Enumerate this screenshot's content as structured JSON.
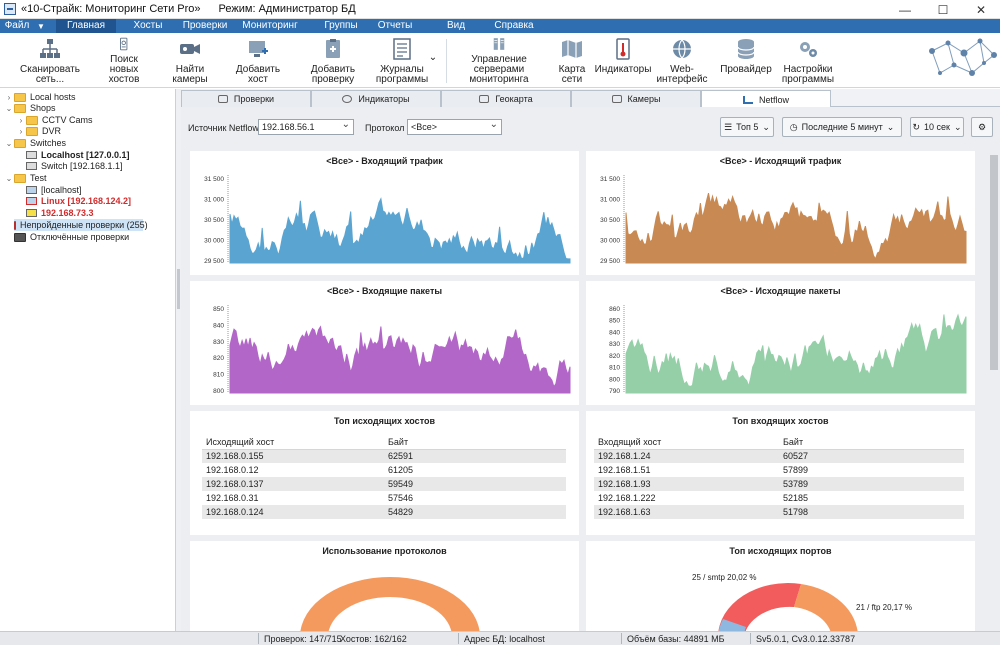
{
  "window": {
    "title": "«10-Страйк: Мониторинг Сети Pro»",
    "mode": "Режим: Администратор БД",
    "controls": {
      "minimize": "—",
      "maximize": "☐",
      "close": "✕"
    }
  },
  "menu": [
    "Файл",
    "Главная",
    "Хосты",
    "Проверки",
    "Мониторинг",
    "Группы",
    "Отчеты",
    "Вид",
    "Справка"
  ],
  "ribbon": {
    "scan": "Сканировать сеть...",
    "find_hosts": "Поиск новых хостов",
    "find_cameras": "Найти камеры",
    "add_host": "Добавить хост",
    "add_check": "Добавить проверку",
    "journals": "Журналы программы",
    "servers": "Управление серверами мониторинга",
    "map": "Карта сети",
    "indicators": "Индикаторы",
    "web": "Web-интерфейс",
    "provider": "Провайдер",
    "settings": "Настройки программы"
  },
  "tree": {
    "local_hosts": "Local hosts",
    "shops": "Shops",
    "cctv": "CCTV Cams",
    "dvr": "DVR",
    "switches": "Switches",
    "localhost": "Localhost [127.0.0.1]",
    "switch": "Switch [192.168.1.1]",
    "test": "Test",
    "t_localhost": "[localhost]",
    "linux": "Linux [192.168.124.2]",
    "ip73": "192.168.73.3",
    "failed": "Непройденные проверки (255)",
    "disabled": "Отключённые проверки"
  },
  "tabs": [
    "Проверки",
    "Индикаторы",
    "Геокарта",
    "Камеры",
    "Netflow"
  ],
  "filters": {
    "source_label": "Источник Netflow",
    "source_value": "192.168.56.1",
    "protocol_label": "Протокол",
    "protocol_value": "<Все>",
    "top": "Топ 5",
    "period": "Последние 5 минут",
    "refresh": "10 сек"
  },
  "charts": {
    "in_traffic": {
      "title": "<Все> - Входящий трафик",
      "ticks": [
        "31 500",
        "31 000",
        "30 500",
        "30 000",
        "29 500"
      ],
      "color": "#5aa4d1"
    },
    "out_traffic": {
      "title": "<Все> - Исходящий трафик",
      "ticks": [
        "31 500",
        "31 000",
        "30 500",
        "30 000",
        "29 500"
      ],
      "color": "#c88952"
    },
    "in_packets": {
      "title": "<Все> - Входящие пакеты",
      "ticks": [
        "850",
        "840",
        "830",
        "820",
        "810",
        "800"
      ],
      "color": "#b266c8"
    },
    "out_packets": {
      "title": "<Все> - Исходящие пакеты",
      "ticks": [
        "860",
        "850",
        "840",
        "830",
        "820",
        "810",
        "800",
        "790"
      ],
      "color": "#94cfa8"
    }
  },
  "top_out": {
    "title": "Топ исходящих хостов",
    "h1": "Исходящий хост",
    "h2": "Байт",
    "rows": [
      [
        "192.168.0.155",
        "62591"
      ],
      [
        "192.168.0.12",
        "61205"
      ],
      [
        "192.168.0.137",
        "59549"
      ],
      [
        "192.168.0.31",
        "57546"
      ],
      [
        "192.168.0.124",
        "54829"
      ]
    ]
  },
  "top_in": {
    "title": "Топ входящих хостов",
    "h1": "Входящий хост",
    "h2": "Байт",
    "rows": [
      [
        "192.168.1.24",
        "60527"
      ],
      [
        "192.168.1.51",
        "57899"
      ],
      [
        "192.168.1.93",
        "53789"
      ],
      [
        "192.168.1.222",
        "52185"
      ],
      [
        "192.168.1.63",
        "51798"
      ]
    ]
  },
  "protocols": {
    "title": "Использование протоколов",
    "color": "#f59a5e"
  },
  "ports": {
    "title": "Топ исходящих портов",
    "label1": "25 / smtp 20,02 %",
    "label2": "21 / ftp 20,17 %",
    "colors": [
      "#f25c5c",
      "#f59a5e",
      "#8fb8e0"
    ]
  },
  "status": {
    "checks": "Проверок: 147/715",
    "hosts": "Хостов: 162/162",
    "db": "Адрес БД: localhost",
    "size": "Объём базы: 44891 МБ",
    "ver": "Sv5.0.1, Cv3.0.12.33787"
  }
}
